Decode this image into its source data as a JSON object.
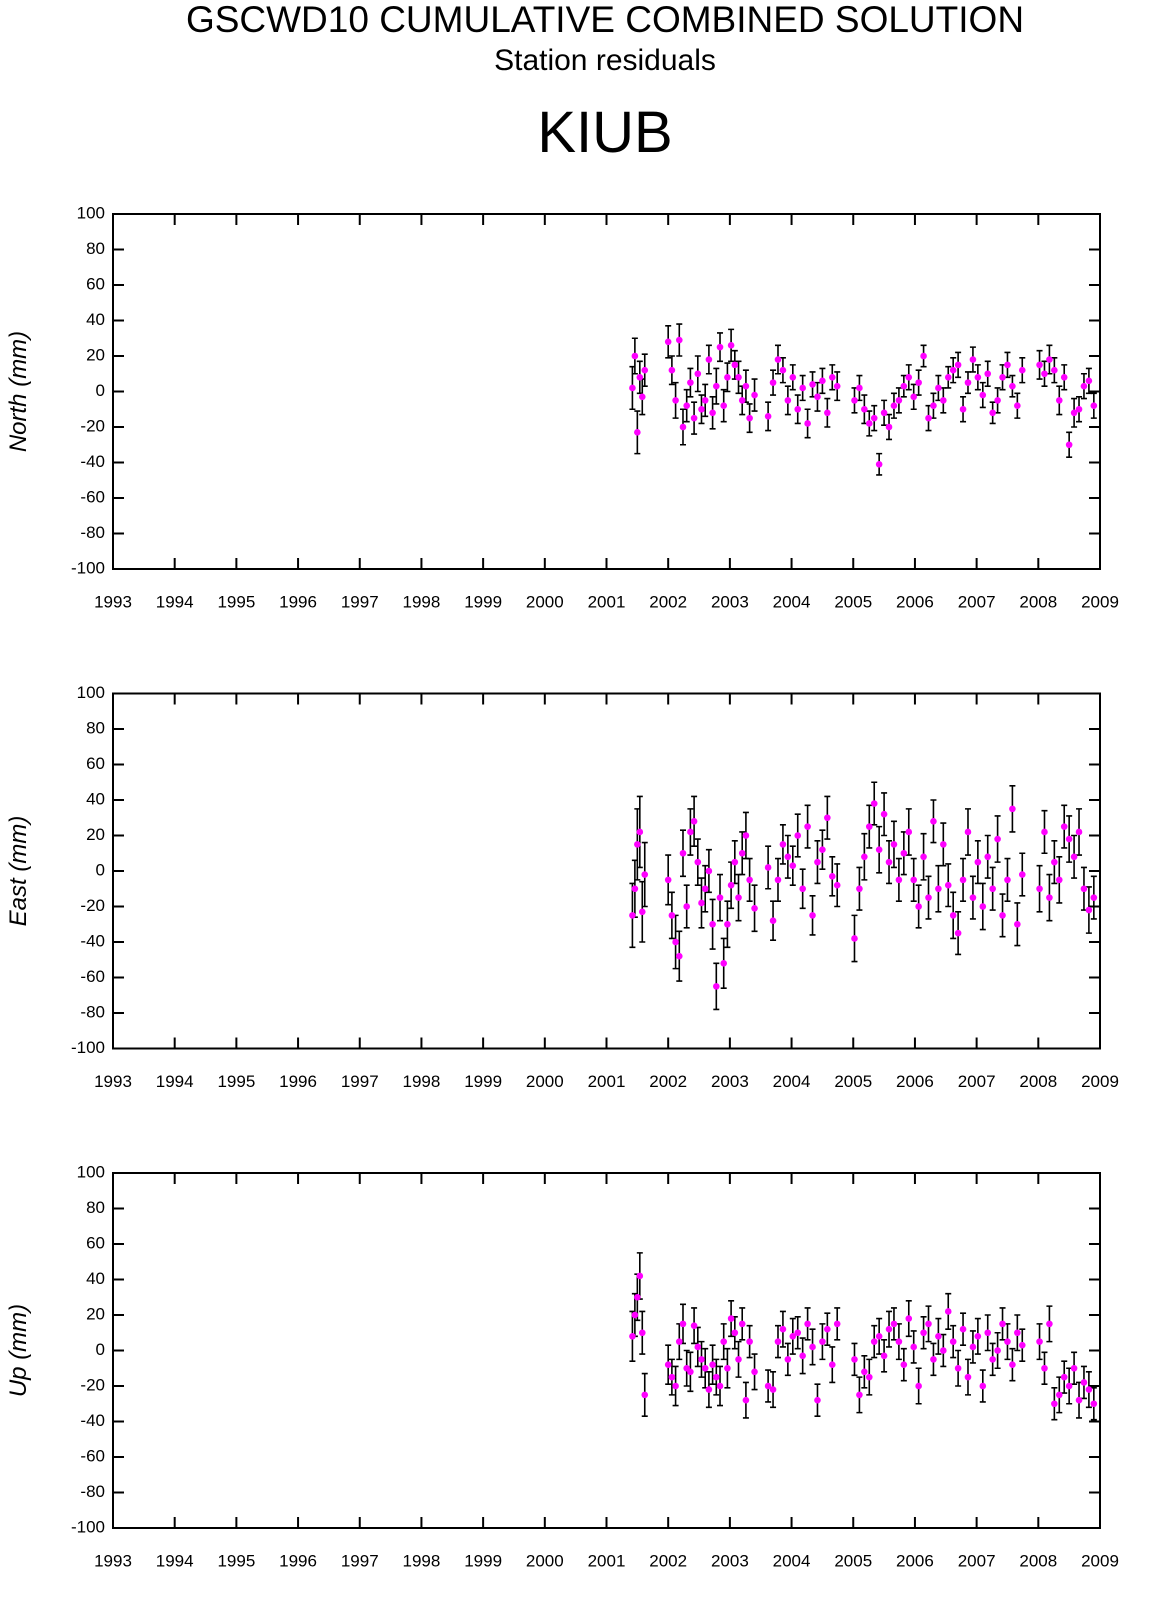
{
  "header": {
    "title": "GSCWD10 CUMULATIVE COMBINED SOLUTION",
    "subtitle": "Station residuals",
    "station": "KIUB"
  },
  "chart_data": [
    {
      "type": "scatter",
      "ylabel": "North (mm)",
      "color": "#ff00ff",
      "error_color": "#000000",
      "xlim": [
        1993,
        2009
      ],
      "xticks": [
        1993,
        1994,
        1995,
        1996,
        1997,
        1998,
        1999,
        2000,
        2001,
        2002,
        2003,
        2004,
        2005,
        2006,
        2007,
        2008,
        2009
      ],
      "ylim": [
        -100,
        100
      ],
      "yticks": [
        -100,
        -80,
        -60,
        -40,
        -20,
        0,
        20,
        40,
        60,
        80,
        100
      ],
      "x": [
        2001.42,
        2001.46,
        2001.5,
        2001.54,
        2001.58,
        2001.62,
        2002.0,
        2002.06,
        2002.12,
        2002.18,
        2002.24,
        2002.3,
        2002.36,
        2002.42,
        2002.48,
        2002.54,
        2002.6,
        2002.66,
        2002.72,
        2002.78,
        2002.84,
        2002.9,
        2002.96,
        2003.02,
        2003.08,
        2003.14,
        2003.2,
        2003.26,
        2003.32,
        2003.4,
        2003.62,
        2003.7,
        2003.78,
        2003.86,
        2003.94,
        2004.02,
        2004.1,
        2004.18,
        2004.26,
        2004.34,
        2004.42,
        2004.5,
        2004.58,
        2004.66,
        2004.74,
        2005.02,
        2005.1,
        2005.18,
        2005.26,
        2005.34,
        2005.42,
        2005.5,
        2005.58,
        2005.66,
        2005.74,
        2005.82,
        2005.9,
        2005.98,
        2006.06,
        2006.14,
        2006.22,
        2006.3,
        2006.38,
        2006.46,
        2006.54,
        2006.62,
        2006.7,
        2006.78,
        2006.86,
        2006.94,
        2007.02,
        2007.1,
        2007.18,
        2007.26,
        2007.34,
        2007.42,
        2007.5,
        2007.58,
        2007.66,
        2007.74,
        2008.02,
        2008.1,
        2008.18,
        2008.26,
        2008.34,
        2008.42,
        2008.5,
        2008.58,
        2008.66,
        2008.74,
        2008.82,
        2008.9
      ],
      "values": [
        2,
        20,
        -23,
        8,
        -3,
        12,
        28,
        12,
        -5,
        29,
        -20,
        -8,
        5,
        -15,
        10,
        -10,
        -5,
        18,
        -12,
        3,
        25,
        -8,
        8,
        26,
        15,
        8,
        -5,
        3,
        -15,
        -2,
        -14,
        5,
        18,
        12,
        -5,
        8,
        -10,
        2,
        -18,
        4,
        -3,
        6,
        -12,
        8,
        3,
        -5,
        2,
        -10,
        -18,
        -15,
        -41,
        -12,
        -20,
        -8,
        -5,
        3,
        8,
        -3,
        5,
        20,
        -15,
        -8,
        2,
        -5,
        8,
        12,
        15,
        -10,
        5,
        18,
        8,
        -2,
        10,
        -12,
        -5,
        8,
        15,
        3,
        -8,
        12,
        15,
        10,
        18,
        12,
        -5,
        8,
        -30,
        -12,
        -10,
        3,
        6,
        -8
      ],
      "errors": [
        12,
        10,
        12,
        9,
        10,
        9,
        9,
        8,
        10,
        9,
        10,
        9,
        8,
        9,
        10,
        8,
        9,
        8,
        9,
        10,
        8,
        9,
        8,
        9,
        8,
        9,
        8,
        9,
        8,
        9,
        8,
        7,
        8,
        7,
        8,
        7,
        8,
        7,
        8,
        7,
        8,
        7,
        8,
        7,
        8,
        7,
        7,
        8,
        7,
        7,
        6,
        7,
        7,
        7,
        7,
        6,
        7,
        7,
        7,
        6,
        7,
        7,
        7,
        7,
        6,
        7,
        7,
        7,
        6,
        7,
        7,
        7,
        7,
        6,
        7,
        7,
        7,
        6,
        7,
        7,
        8,
        7,
        8,
        7,
        8,
        7,
        7,
        8,
        7,
        7,
        7,
        7
      ]
    },
    {
      "type": "scatter",
      "ylabel": "East (mm)",
      "color": "#ff00ff",
      "error_color": "#000000",
      "xlim": [
        1993,
        2009
      ],
      "xticks": [
        1993,
        1994,
        1995,
        1996,
        1997,
        1998,
        1999,
        2000,
        2001,
        2002,
        2003,
        2004,
        2005,
        2006,
        2007,
        2008,
        2009
      ],
      "ylim": [
        -100,
        100
      ],
      "yticks": [
        -100,
        -80,
        -60,
        -40,
        -20,
        0,
        20,
        40,
        60,
        80,
        100
      ],
      "x": [
        2001.42,
        2001.46,
        2001.5,
        2001.54,
        2001.58,
        2001.62,
        2002.0,
        2002.06,
        2002.12,
        2002.18,
        2002.24,
        2002.3,
        2002.36,
        2002.42,
        2002.48,
        2002.54,
        2002.6,
        2002.66,
        2002.72,
        2002.78,
        2002.84,
        2002.9,
        2002.96,
        2003.02,
        2003.08,
        2003.14,
        2003.2,
        2003.26,
        2003.32,
        2003.4,
        2003.62,
        2003.7,
        2003.78,
        2003.86,
        2003.94,
        2004.02,
        2004.1,
        2004.18,
        2004.26,
        2004.34,
        2004.42,
        2004.5,
        2004.58,
        2004.66,
        2004.74,
        2005.02,
        2005.1,
        2005.18,
        2005.26,
        2005.34,
        2005.42,
        2005.5,
        2005.58,
        2005.66,
        2005.74,
        2005.82,
        2005.9,
        2005.98,
        2006.06,
        2006.14,
        2006.22,
        2006.3,
        2006.38,
        2006.46,
        2006.54,
        2006.62,
        2006.7,
        2006.78,
        2006.86,
        2006.94,
        2007.02,
        2007.1,
        2007.18,
        2007.26,
        2007.34,
        2007.42,
        2007.5,
        2007.58,
        2007.66,
        2007.74,
        2008.02,
        2008.1,
        2008.18,
        2008.26,
        2008.34,
        2008.42,
        2008.5,
        2008.58,
        2008.66,
        2008.74,
        2008.82,
        2008.9
      ],
      "values": [
        -25,
        -10,
        15,
        22,
        -23,
        -2,
        -5,
        -25,
        -40,
        -48,
        10,
        -20,
        22,
        28,
        5,
        -18,
        -10,
        0,
        -30,
        -65,
        -15,
        -52,
        -30,
        -8,
        5,
        -15,
        10,
        20,
        -5,
        -21,
        2,
        -28,
        -5,
        15,
        8,
        3,
        20,
        -10,
        25,
        -25,
        5,
        12,
        30,
        -3,
        -8,
        -38,
        -10,
        8,
        25,
        38,
        12,
        32,
        5,
        15,
        -5,
        10,
        22,
        -5,
        -20,
        8,
        -15,
        28,
        -10,
        15,
        -8,
        -25,
        -35,
        -5,
        22,
        -15,
        5,
        -20,
        8,
        -10,
        18,
        -25,
        -5,
        35,
        -30,
        -2,
        -10,
        22,
        -15,
        5,
        -5,
        25,
        18,
        8,
        22,
        -10,
        -22,
        -15
      ],
      "errors": [
        18,
        16,
        20,
        20,
        17,
        18,
        14,
        13,
        15,
        14,
        13,
        12,
        13,
        14,
        13,
        14,
        13,
        12,
        14,
        13,
        13,
        14,
        13,
        13,
        12,
        13,
        12,
        13,
        12,
        13,
        12,
        11,
        12,
        11,
        12,
        11,
        12,
        11,
        12,
        11,
        12,
        11,
        12,
        11,
        12,
        13,
        12,
        13,
        12,
        12,
        13,
        12,
        12,
        13,
        12,
        12,
        13,
        12,
        12,
        13,
        12,
        12,
        13,
        12,
        12,
        13,
        12,
        12,
        13,
        12,
        12,
        13,
        12,
        12,
        13,
        12,
        12,
        13,
        12,
        12,
        13,
        12,
        13,
        12,
        13,
        12,
        13,
        12,
        13,
        12,
        13,
        12
      ]
    },
    {
      "type": "scatter",
      "ylabel": "Up (mm)",
      "color": "#ff00ff",
      "error_color": "#000000",
      "xlim": [
        1993,
        2009
      ],
      "xticks": [
        1993,
        1994,
        1995,
        1996,
        1997,
        1998,
        1999,
        2000,
        2001,
        2002,
        2003,
        2004,
        2005,
        2006,
        2007,
        2008,
        2009
      ],
      "ylim": [
        -100,
        100
      ],
      "yticks": [
        -100,
        -80,
        -60,
        -40,
        -20,
        0,
        20,
        40,
        60,
        80,
        100
      ],
      "x": [
        2001.42,
        2001.46,
        2001.5,
        2001.54,
        2001.58,
        2001.62,
        2002.0,
        2002.06,
        2002.12,
        2002.18,
        2002.24,
        2002.3,
        2002.36,
        2002.42,
        2002.48,
        2002.54,
        2002.6,
        2002.66,
        2002.72,
        2002.78,
        2002.84,
        2002.9,
        2002.96,
        2003.02,
        2003.08,
        2003.14,
        2003.2,
        2003.26,
        2003.32,
        2003.4,
        2003.62,
        2003.7,
        2003.78,
        2003.86,
        2003.94,
        2004.02,
        2004.1,
        2004.18,
        2004.26,
        2004.34,
        2004.42,
        2004.5,
        2004.58,
        2004.66,
        2004.74,
        2005.02,
        2005.1,
        2005.18,
        2005.26,
        2005.34,
        2005.42,
        2005.5,
        2005.58,
        2005.66,
        2005.74,
        2005.82,
        2005.9,
        2005.98,
        2006.06,
        2006.14,
        2006.22,
        2006.3,
        2006.38,
        2006.46,
        2006.54,
        2006.62,
        2006.7,
        2006.78,
        2006.86,
        2006.94,
        2007.02,
        2007.1,
        2007.18,
        2007.26,
        2007.34,
        2007.42,
        2007.5,
        2007.58,
        2007.66,
        2007.74,
        2008.02,
        2008.1,
        2008.18,
        2008.26,
        2008.34,
        2008.42,
        2008.5,
        2008.58,
        2008.66,
        2008.74,
        2008.82,
        2008.9
      ],
      "values": [
        8,
        20,
        30,
        42,
        10,
        -25,
        -8,
        -15,
        -20,
        5,
        15,
        -10,
        -12,
        14,
        2,
        -5,
        -10,
        -22,
        -8,
        -15,
        -20,
        5,
        -10,
        18,
        10,
        -5,
        15,
        -28,
        5,
        -12,
        -20,
        -22,
        5,
        12,
        -5,
        8,
        10,
        -3,
        15,
        2,
        -28,
        5,
        12,
        -8,
        15,
        -5,
        -25,
        -12,
        -15,
        5,
        8,
        -3,
        12,
        15,
        5,
        -8,
        18,
        2,
        -20,
        10,
        15,
        -5,
        8,
        0,
        22,
        5,
        -10,
        12,
        -15,
        2,
        8,
        -20,
        10,
        -5,
        0,
        15,
        5,
        -8,
        10,
        3,
        5,
        -10,
        15,
        -30,
        -25,
        -15,
        -20,
        -10,
        -28,
        -18,
        -22,
        -30
      ],
      "errors": [
        14,
        12,
        13,
        13,
        12,
        12,
        11,
        10,
        11,
        10,
        11,
        10,
        11,
        10,
        11,
        10,
        11,
        10,
        11,
        10,
        11,
        10,
        11,
        10,
        9,
        10,
        9,
        10,
        9,
        10,
        9,
        10,
        9,
        10,
        9,
        10,
        9,
        10,
        9,
        10,
        9,
        10,
        9,
        10,
        9,
        9,
        10,
        9,
        10,
        9,
        10,
        9,
        10,
        9,
        10,
        9,
        10,
        9,
        10,
        9,
        10,
        9,
        10,
        9,
        10,
        9,
        10,
        9,
        10,
        9,
        10,
        9,
        10,
        9,
        10,
        9,
        10,
        9,
        10,
        9,
        10,
        9,
        10,
        9,
        10,
        9,
        10,
        9,
        10,
        9,
        10,
        9
      ]
    }
  ]
}
